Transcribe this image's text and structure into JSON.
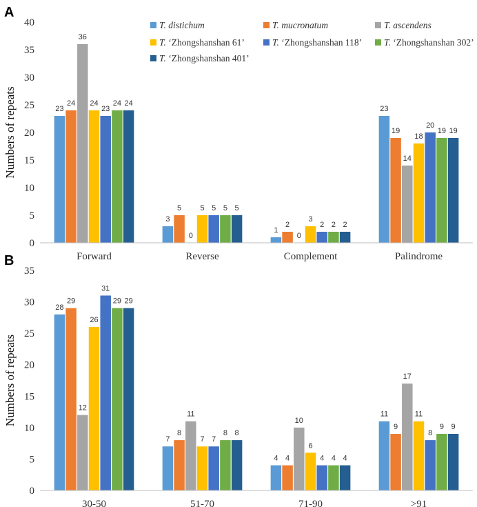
{
  "chart_data": [
    {
      "type": "bar",
      "panel": "A",
      "ylabel": "Numbers of repeats",
      "xlabel": "",
      "ylim": [
        0,
        40
      ],
      "yticks": [
        0,
        5,
        10,
        15,
        20,
        25,
        30,
        35,
        40
      ],
      "categories": [
        "Forward",
        "Reverse",
        "Complement",
        "Palindrome"
      ],
      "legend_position": "top-right",
      "series": [
        {
          "prefix": "T.",
          "name": "distichum",
          "italic": true,
          "color": "#5B9BD5",
          "values": [
            23,
            3,
            1,
            23
          ]
        },
        {
          "prefix": "T.",
          "name": "mucronatum",
          "italic": true,
          "color": "#ED7D31",
          "values": [
            24,
            5,
            2,
            19
          ]
        },
        {
          "prefix": "T.",
          "name": "ascendens",
          "italic": true,
          "color": "#A5A5A5",
          "values": [
            36,
            0,
            0,
            14
          ]
        },
        {
          "prefix": "T.",
          "name": "‘Zhongshanshan 61’",
          "italic": false,
          "color": "#FFC000",
          "values": [
            24,
            5,
            3,
            18
          ]
        },
        {
          "prefix": "T.",
          "name": "‘Zhongshanshan 118’",
          "italic": false,
          "color": "#4472C4",
          "values": [
            23,
            5,
            2,
            20
          ]
        },
        {
          "prefix": "T.",
          "name": "‘Zhongshanshan 302’",
          "italic": false,
          "color": "#70AD47",
          "values": [
            24,
            5,
            2,
            19
          ]
        },
        {
          "prefix": "T.",
          "name": "‘Zhongshanshan 401’",
          "italic": false,
          "color": "#255E91",
          "values": [
            24,
            5,
            2,
            19
          ]
        }
      ]
    },
    {
      "type": "bar",
      "panel": "B",
      "ylabel": "Numbers of repeats",
      "xlabel": "",
      "ylim": [
        0,
        35
      ],
      "yticks": [
        0,
        5,
        10,
        15,
        20,
        25,
        30,
        35
      ],
      "categories": [
        "30-50",
        "51-70",
        "71-90",
        ">91"
      ],
      "series": [
        {
          "name": "T. distichum",
          "color": "#5B9BD5",
          "values": [
            28,
            7,
            4,
            11
          ]
        },
        {
          "name": "T. mucronatum",
          "color": "#ED7D31",
          "values": [
            29,
            8,
            4,
            9
          ]
        },
        {
          "name": "T. ascendens",
          "color": "#A5A5A5",
          "values": [
            12,
            11,
            10,
            17
          ]
        },
        {
          "name": "T. ‘Zhongshanshan 61’",
          "color": "#FFC000",
          "values": [
            26,
            7,
            6,
            11
          ]
        },
        {
          "name": "T. ‘Zhongshanshan 118’",
          "color": "#4472C4",
          "values": [
            31,
            7,
            4,
            8
          ]
        },
        {
          "name": "T. ‘Zhongshanshan 302’",
          "color": "#70AD47",
          "values": [
            29,
            8,
            4,
            9
          ]
        },
        {
          "name": "T. ‘Zhongshanshan 401’",
          "color": "#255E91",
          "values": [
            29,
            8,
            4,
            9
          ]
        }
      ]
    }
  ]
}
